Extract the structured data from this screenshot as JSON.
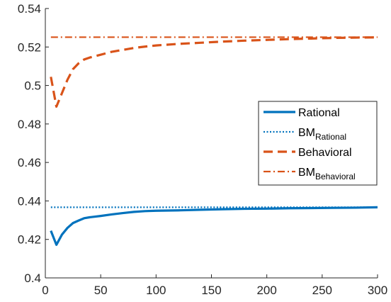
{
  "chart_data": {
    "type": "line",
    "title": "",
    "xlabel": "",
    "ylabel": "",
    "xlim": [
      0,
      300
    ],
    "ylim": [
      0.4,
      0.54
    ],
    "x_ticks": [
      0,
      50,
      100,
      150,
      200,
      250,
      300
    ],
    "y_ticks": [
      0.4,
      0.42,
      0.44,
      0.46,
      0.48,
      0.5,
      0.52,
      0.54
    ],
    "grid": false,
    "legend_position": "right-center",
    "series": [
      {
        "name": "Rational",
        "color": "#0072BD",
        "style": "solid",
        "x": [
          5,
          10,
          15,
          20,
          25,
          30,
          35,
          40,
          50,
          60,
          70,
          80,
          90,
          100,
          120,
          140,
          160,
          180,
          200,
          220,
          240,
          260,
          280,
          300
        ],
        "y": [
          0.4245,
          0.4172,
          0.4225,
          0.426,
          0.4285,
          0.4298,
          0.431,
          0.4315,
          0.4322,
          0.433,
          0.4337,
          0.4343,
          0.4347,
          0.4349,
          0.4351,
          0.4354,
          0.4357,
          0.4359,
          0.436,
          0.4362,
          0.4363,
          0.4364,
          0.4365,
          0.4367
        ]
      },
      {
        "name": "BM",
        "name_sub": "Rational",
        "color": "#0072BD",
        "style": "dotted",
        "x": [
          5,
          300
        ],
        "y": [
          0.4367,
          0.4367
        ]
      },
      {
        "name": "Behavioral",
        "color": "#D95319",
        "style": "dashed",
        "x": [
          5,
          10,
          15,
          20,
          25,
          30,
          35,
          40,
          50,
          60,
          70,
          80,
          90,
          100,
          120,
          140,
          160,
          180,
          200,
          220,
          240,
          260,
          280,
          300
        ],
        "y": [
          0.5045,
          0.489,
          0.496,
          0.503,
          0.5085,
          0.5115,
          0.5135,
          0.5145,
          0.516,
          0.5175,
          0.5185,
          0.5195,
          0.5202,
          0.5208,
          0.5216,
          0.5222,
          0.5228,
          0.5233,
          0.5237,
          0.5241,
          0.5244,
          0.5247,
          0.5249,
          0.525
        ]
      },
      {
        "name": "BM",
        "name_sub": "Behavioral",
        "color": "#D95319",
        "style": "dashdot",
        "x": [
          5,
          300
        ],
        "y": [
          0.5251,
          0.5251
        ]
      }
    ]
  }
}
